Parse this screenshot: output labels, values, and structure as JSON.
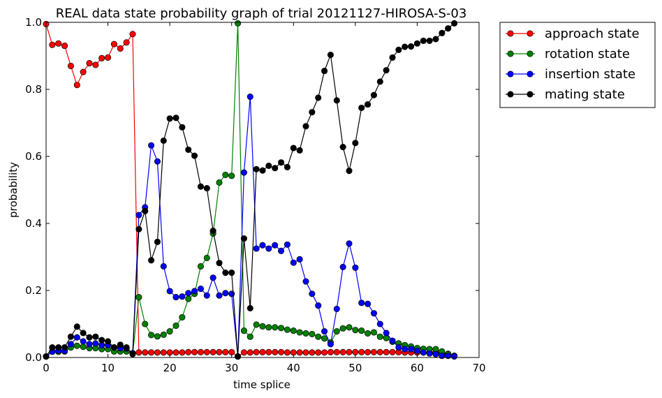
{
  "chart_data": {
    "type": "line",
    "title": "REAL data state probability graph of trial 20121127-HIROSA-S-03",
    "xlabel": "time splice",
    "ylabel": "probability",
    "xlim": [
      0,
      70
    ],
    "ylim": [
      0,
      1.0
    ],
    "xticks": [
      0,
      10,
      20,
      30,
      40,
      50,
      60,
      70
    ],
    "xtick_labels": [
      "0",
      "10",
      "20",
      "30",
      "40",
      "50",
      "60",
      "70"
    ],
    "yticks": [
      0,
      0.2,
      0.4,
      0.6,
      0.8,
      1.0
    ],
    "ytick_labels": [
      "0.0",
      "0.2",
      "0.4",
      "0.6",
      "0.8",
      "1.0"
    ],
    "grid": false,
    "legend_position": "outside-top-right",
    "x": [
      0,
      1,
      2,
      3,
      4,
      5,
      6,
      7,
      8,
      9,
      10,
      11,
      12,
      13,
      14,
      15,
      16,
      17,
      18,
      19,
      20,
      21,
      22,
      23,
      24,
      25,
      26,
      27,
      28,
      29,
      30,
      31,
      32,
      33,
      34,
      35,
      36,
      37,
      38,
      39,
      40,
      41,
      42,
      43,
      44,
      45,
      46,
      47,
      48,
      49,
      50,
      51,
      52,
      53,
      54,
      55,
      56,
      57,
      58,
      59,
      60,
      61,
      62,
      63,
      64,
      65,
      66
    ],
    "series": [
      {
        "name": "approach state",
        "color": "#ff0000",
        "values": [
          0.995,
          0.933,
          0.937,
          0.93,
          0.87,
          0.813,
          0.852,
          0.878,
          0.873,
          0.893,
          0.895,
          0.935,
          0.922,
          0.94,
          0.965,
          0.015,
          0.015,
          0.015,
          0.015,
          0.015,
          0.015,
          0.015,
          0.015,
          0.016,
          0.016,
          0.016,
          0.016,
          0.016,
          0.016,
          0.016,
          0.016,
          0.003,
          0.015,
          0.015,
          0.016,
          0.016,
          0.016,
          0.016,
          0.016,
          0.015,
          0.015,
          0.015,
          0.015,
          0.015,
          0.015,
          0.015,
          0.016,
          0.016,
          0.016,
          0.016,
          0.016,
          0.016,
          0.016,
          0.016,
          0.016,
          0.016,
          0.016,
          0.016,
          0.015,
          0.015,
          0.015,
          0.015,
          0.015,
          0.015,
          0.013,
          0.011,
          0.005
        ]
      },
      {
        "name": "rotation state",
        "color": "#008000",
        "values": [
          0.003,
          0.018,
          0.017,
          0.018,
          0.03,
          0.035,
          0.032,
          0.028,
          0.028,
          0.025,
          0.025,
          0.018,
          0.018,
          0.018,
          0.012,
          0.18,
          0.1,
          0.067,
          0.063,
          0.068,
          0.078,
          0.095,
          0.12,
          0.175,
          0.19,
          0.272,
          0.297,
          0.37,
          0.522,
          0.545,
          0.542,
          0.997,
          0.08,
          0.062,
          0.098,
          0.093,
          0.09,
          0.09,
          0.088,
          0.083,
          0.08,
          0.075,
          0.072,
          0.07,
          0.062,
          0.057,
          0.045,
          0.078,
          0.087,
          0.09,
          0.082,
          0.08,
          0.072,
          0.075,
          0.062,
          0.058,
          0.047,
          0.042,
          0.037,
          0.033,
          0.028,
          0.026,
          0.025,
          0.025,
          0.018,
          0.01,
          0.005
        ]
      },
      {
        "name": "insertion state",
        "color": "#0000ff",
        "values": [
          0.003,
          0.017,
          0.02,
          0.02,
          0.04,
          0.06,
          0.048,
          0.04,
          0.042,
          0.037,
          0.037,
          0.03,
          0.028,
          0.027,
          0.013,
          0.425,
          0.448,
          0.633,
          0.585,
          0.272,
          0.198,
          0.18,
          0.182,
          0.192,
          0.198,
          0.205,
          0.185,
          0.238,
          0.185,
          0.192,
          0.19,
          0.003,
          0.552,
          0.778,
          0.325,
          0.335,
          0.325,
          0.335,
          0.318,
          0.337,
          0.283,
          0.293,
          0.227,
          0.19,
          0.155,
          0.078,
          0.04,
          0.145,
          0.27,
          0.34,
          0.268,
          0.163,
          0.16,
          0.132,
          0.1,
          0.073,
          0.05,
          0.03,
          0.025,
          0.025,
          0.02,
          0.015,
          0.012,
          0.01,
          0.005,
          0.005,
          0.003
        ]
      },
      {
        "name": "mating state",
        "color": "#000000",
        "values": [
          0.003,
          0.03,
          0.03,
          0.03,
          0.062,
          0.092,
          0.073,
          0.06,
          0.062,
          0.052,
          0.048,
          0.03,
          0.038,
          0.03,
          0.01,
          0.383,
          0.437,
          0.29,
          0.345,
          0.647,
          0.713,
          0.715,
          0.687,
          0.62,
          0.602,
          0.51,
          0.505,
          0.378,
          0.282,
          0.253,
          0.253,
          0.003,
          0.355,
          0.147,
          0.562,
          0.558,
          0.572,
          0.565,
          0.582,
          0.568,
          0.625,
          0.618,
          0.69,
          0.732,
          0.775,
          0.855,
          0.903,
          0.767,
          0.628,
          0.557,
          0.64,
          0.745,
          0.755,
          0.783,
          0.823,
          0.857,
          0.895,
          0.918,
          0.927,
          0.928,
          0.937,
          0.945,
          0.945,
          0.95,
          0.968,
          0.982,
          0.997
        ]
      }
    ]
  }
}
